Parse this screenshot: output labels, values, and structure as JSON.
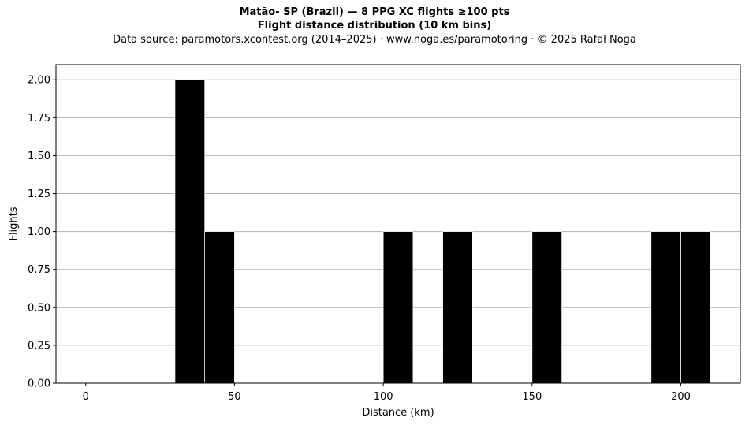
{
  "chart_data": {
    "type": "bar",
    "title": "Matão- SP (Brazil)  —  8 PPG XC flights ≥100 pts",
    "subtitle": "Flight distance distribution (10 km bins)",
    "source_line": "Data source: paramotors.xcontest.org (2014–2025)  ·  www.noga.es/paramotoring  ·  © 2025 Rafał Noga",
    "xlabel": "Distance (km)",
    "ylabel": "Flights",
    "xlim": [
      -10,
      220
    ],
    "ylim": [
      0,
      2.1
    ],
    "x_ticks": [
      0,
      50,
      100,
      150,
      200
    ],
    "x_tick_labels": [
      "0",
      "50",
      "100",
      "150",
      "200"
    ],
    "y_ticks": [
      0,
      0.25,
      0.5,
      0.75,
      1.0,
      1.25,
      1.5,
      1.75,
      2.0
    ],
    "y_tick_labels": [
      "0.00",
      "0.25",
      "0.50",
      "0.75",
      "1.00",
      "1.25",
      "1.50",
      "1.75",
      "2.00"
    ],
    "grid": "y",
    "bins": [
      {
        "start": 30,
        "end": 40,
        "count": 2
      },
      {
        "start": 40,
        "end": 50,
        "count": 1
      },
      {
        "start": 100,
        "end": 110,
        "count": 1
      },
      {
        "start": 120,
        "end": 130,
        "count": 1
      },
      {
        "start": 150,
        "end": 160,
        "count": 1
      },
      {
        "start": 190,
        "end": 200,
        "count": 1
      },
      {
        "start": 200,
        "end": 210,
        "count": 1
      }
    ],
    "bar_color": "#000000",
    "bar_edge_color": "#ffffff",
    "grid_color": "#b0b0b0"
  }
}
